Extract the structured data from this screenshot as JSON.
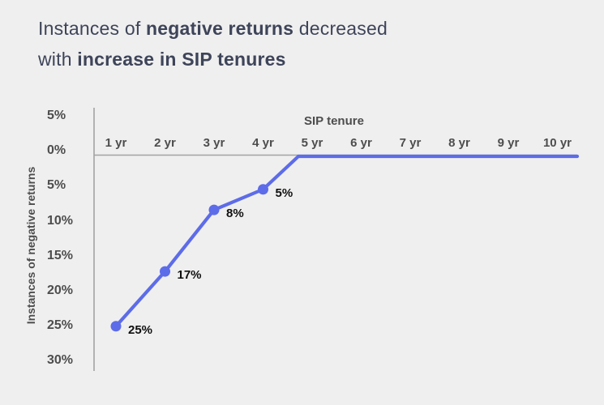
{
  "background_color": "#efefef",
  "title": {
    "color": "#3e4459",
    "lines": [
      {
        "parts": [
          {
            "text": "Instances of ",
            "bold": false
          },
          {
            "text": "negative returns",
            "bold": true
          },
          {
            "text": " decreased",
            "bold": false
          }
        ]
      },
      {
        "parts": [
          {
            "text": "with ",
            "bold": false
          },
          {
            "text": "increase in SIP tenures",
            "bold": true
          }
        ]
      }
    ]
  },
  "chart_data": {
    "type": "line",
    "title": "Instances of negative returns decreased with increase in SIP tenures",
    "xlabel": "SIP tenure",
    "ylabel": "Instances of negative returns",
    "categories": [
      "1 yr",
      "2 yr",
      "3 yr",
      "4 yr",
      "5 yr",
      "6 yr",
      "7 yr",
      "8 yr",
      "9 yr",
      "10 yr"
    ],
    "values": [
      25,
      17,
      8,
      5,
      0,
      0,
      0,
      0,
      0,
      0
    ],
    "data_labels": [
      "25%",
      "17%",
      "8%",
      "5%"
    ],
    "y_ticks": [
      "5%",
      "0%",
      "5%",
      "10%",
      "15%",
      "20%",
      "25%",
      "30%"
    ],
    "y_axis_inverted": true,
    "ylim": [
      -5,
      30
    ],
    "grid": false,
    "legend": "none",
    "line_color": "#5d6ce8",
    "axis_color": "#a3a3a3",
    "tick_label_color": "#4d4d4d",
    "data_label_color": "#101010"
  }
}
